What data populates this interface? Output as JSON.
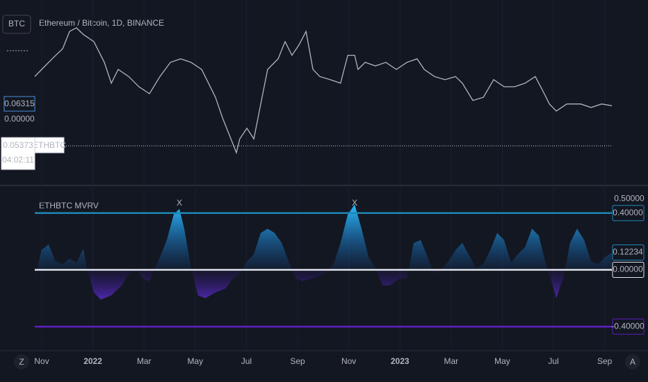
{
  "chart_data": [
    {
      "type": "line",
      "title": "Ethereum / Bitcoin, 1D, BINANCE",
      "symbol_button": "BTC",
      "x": [
        -0.27,
        0,
        0.41,
        0.82,
        1.09,
        1.36,
        1.63,
        2.04,
        2.45,
        2.72,
        2.99,
        3.4,
        3.8,
        4.21,
        4.62,
        5.03,
        5.43,
        5.84,
        6.25,
        6.52,
        6.79,
        7.07,
        7.34,
        7.61,
        7.74,
        8.02,
        8.29,
        8.56,
        8.83,
        9.24,
        9.51,
        9.78,
        10.05,
        10.33,
        10.6,
        10.87,
        11.28,
        11.68,
        11.96,
        12.23,
        12.36,
        12.64,
        13.04,
        13.45,
        13.86,
        14.27,
        14.67,
        14.95,
        15.35,
        15.76,
        16.17,
        16.44,
        16.85,
        17.26,
        17.66,
        18.07,
        18.48,
        18.89,
        19.29,
        19.57,
        19.84,
        20.11,
        20.52,
        21.06,
        21.47,
        21.88,
        22.28
      ],
      "series": [
        {
          "name": "ETHBTC",
          "color": "#b2b5be",
          "values": [
            0.0694,
            0.071,
            0.0734,
            0.0757,
            0.0796,
            0.0804,
            0.0789,
            0.0773,
            0.0726,
            0.0679,
            0.071,
            0.0694,
            0.0671,
            0.0655,
            0.0694,
            0.0726,
            0.0734,
            0.0726,
            0.071,
            0.0679,
            0.0647,
            0.06,
            0.0561,
            0.0522,
            0.0553,
            0.0577,
            0.0553,
            0.0632,
            0.071,
            0.0734,
            0.0773,
            0.0742,
            0.0765,
            0.0796,
            0.071,
            0.0694,
            0.0687,
            0.0679,
            0.0742,
            0.0742,
            0.071,
            0.0726,
            0.0718,
            0.0726,
            0.071,
            0.0726,
            0.0734,
            0.071,
            0.0694,
            0.0687,
            0.0694,
            0.0679,
            0.064,
            0.0647,
            0.0687,
            0.0671,
            0.0671,
            0.0679,
            0.0694,
            0.0663,
            0.0632,
            0.0616,
            0.0632,
            0.0632,
            0.0624,
            0.0632,
            0.0628
          ]
        }
      ],
      "xlim": [
        -0.27,
        22.28
      ],
      "ylim": [
        0.0451,
        0.0867
      ],
      "last_value": 0.06315,
      "reference_line": 0.05373,
      "countdown": "04:02:11",
      "overlay_label": {
        "value": 0,
        "label": "0.00000"
      }
    },
    {
      "type": "area",
      "title": "ETHBTC MVRV",
      "x": [
        -0.27,
        0,
        0.27,
        0.54,
        0.82,
        1.09,
        1.36,
        1.63,
        1.77,
        2.04,
        2.31,
        2.72,
        3.13,
        3.4,
        3.67,
        3.94,
        4.21,
        4.62,
        4.89,
        5.16,
        5.38,
        5.57,
        5.84,
        6.11,
        6.39,
        6.79,
        7.2,
        7.47,
        7.74,
        8.02,
        8.29,
        8.56,
        8.83,
        9.1,
        9.38,
        9.65,
        9.92,
        10.19,
        10.6,
        11.01,
        11.41,
        11.68,
        11.96,
        12.23,
        12.5,
        12.77,
        13.04,
        13.32,
        13.59,
        14,
        14.27,
        14.54,
        14.81,
        15.08,
        15.35,
        15.63,
        15.9,
        16.17,
        16.44,
        16.71,
        16.98,
        17.26,
        17.53,
        17.8,
        18.07,
        18.34,
        18.61,
        18.89,
        19.16,
        19.43,
        19.7,
        19.97,
        20.11,
        20.38,
        20.65,
        20.92,
        21.2,
        21.47,
        21.74,
        22.01,
        22.28
      ],
      "values": [
        -0.06,
        0.14,
        0.18,
        0.06,
        0.04,
        0.08,
        0.05,
        0.15,
        0.01,
        -0.16,
        -0.21,
        -0.18,
        -0.11,
        -0.03,
        0.01,
        -0.06,
        -0.08,
        0.09,
        0.21,
        0.39,
        0.43,
        0.29,
        0.01,
        -0.18,
        -0.2,
        -0.16,
        -0.13,
        -0.06,
        -0.03,
        0.06,
        0.11,
        0.26,
        0.29,
        0.26,
        0.19,
        0.06,
        -0.06,
        -0.08,
        -0.06,
        -0.03,
        0.04,
        0.19,
        0.39,
        0.46,
        0.29,
        0.09,
        0.01,
        -0.11,
        -0.11,
        -0.06,
        -0.06,
        0.19,
        0.21,
        0.09,
        -0.03,
        0.01,
        0.06,
        0.14,
        0.19,
        0.1,
        0.01,
        0.04,
        0.14,
        0.26,
        0.21,
        0.05,
        0.11,
        0.16,
        0.29,
        0.24,
        0.04,
        -0.11,
        -0.2,
        -0.06,
        0.19,
        0.29,
        0.21,
        0.06,
        0.04,
        0.09,
        0.12
      ],
      "colors": {
        "upper": "#29b6f6",
        "lower": "#5e2fd0"
      },
      "xlim": [
        -0.27,
        22.28
      ],
      "ylim": [
        -0.57,
        0.58
      ],
      "yticks": [
        {
          "value": 0.5,
          "label": "0.50000"
        }
      ],
      "levels": [
        {
          "value": 0.4,
          "label": "0.40000",
          "color": "#1e88b5"
        },
        {
          "value": 0,
          "label": "0.00000",
          "color": "#e0e3eb"
        },
        {
          "value": -0.4,
          "label": "-0.40000",
          "color": "#5e1fbf"
        }
      ],
      "last_value": {
        "value": 0.12234,
        "label": "0.12234"
      },
      "signals": [
        {
          "x": 5.38,
          "label": "X"
        },
        {
          "x": 12.23,
          "label": "X"
        }
      ],
      "xticks": [
        {
          "value": 0,
          "label": "Nov"
        },
        {
          "value": 2,
          "label": "2022"
        },
        {
          "value": 4,
          "label": "Mar"
        },
        {
          "value": 6,
          "label": "May"
        },
        {
          "value": 8,
          "label": "Jul"
        },
        {
          "value": 10,
          "label": "Sep"
        },
        {
          "value": 12,
          "label": "Nov"
        },
        {
          "value": 14,
          "label": "2023"
        },
        {
          "value": 16,
          "label": "Mar"
        },
        {
          "value": 18,
          "label": "May"
        },
        {
          "value": 20,
          "label": "Jul"
        },
        {
          "value": 22,
          "label": "Sep"
        }
      ]
    }
  ],
  "ui": {
    "left_button": "Z",
    "right_button": "A"
  }
}
